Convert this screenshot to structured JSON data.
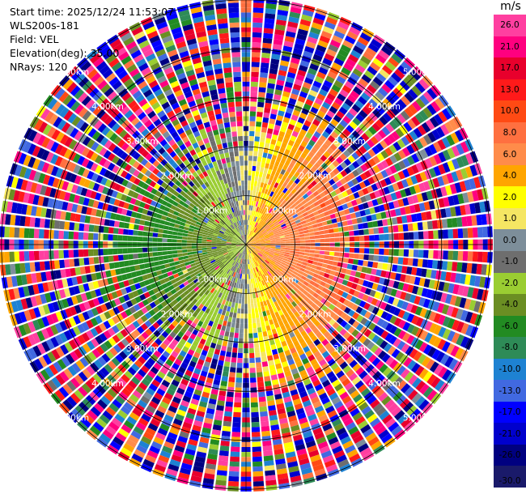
{
  "header": {
    "start_time": "Start time: 2025/12/24 11:53:07",
    "instrument": "WLS200s-181",
    "field": "Field: VEL",
    "elevation": "Elevation(deg): 35.00",
    "nrays": "NRays: 120"
  },
  "colorbar": {
    "unit": "m/s",
    "levels": [
      "26.0",
      "21.0",
      "17.0",
      "13.0",
      "10.0",
      "8.0",
      "6.0",
      "4.0",
      "2.0",
      "1.0",
      "0.0",
      "-1.0",
      "-2.0",
      "-4.0",
      "-6.0",
      "-8.0",
      "-10.0",
      "-13.0",
      "-17.0",
      "-21.0",
      "-26.0",
      "-30.0"
    ],
    "colors": [
      "#ff3fa0",
      "#ff007f",
      "#e8002c",
      "#ff1a1a",
      "#ff4a14",
      "#ff7040",
      "#ff8c4a",
      "#ffa500",
      "#ffff00",
      "#f5e663",
      "#7d8e9a",
      "#6e6e6e",
      "#9acd32",
      "#6b8e23",
      "#228b22",
      "#2e8b57",
      "#1e82d2",
      "#4169e1",
      "#0000ff",
      "#0000cd",
      "#000080",
      "#1a1a6a"
    ]
  },
  "chart_data": {
    "type": "heatmap",
    "projection": "polar-ppi",
    "field": "VEL",
    "units": "m/s",
    "elevation_deg": 35.0,
    "n_rays": 120,
    "range_rings_km": [
      "1.00km",
      "2.00km",
      "3.00km",
      "4.00km",
      "5.00km"
    ],
    "max_range_km": 5.5,
    "colorbar_range": [
      -30,
      26
    ],
    "pattern": {
      "description_values": "radial velocity field: positive (away) on east side, negative (toward) on west side",
      "zero_line_azimuth_deg": 0,
      "max_wind_speed_ms": 7
    }
  }
}
